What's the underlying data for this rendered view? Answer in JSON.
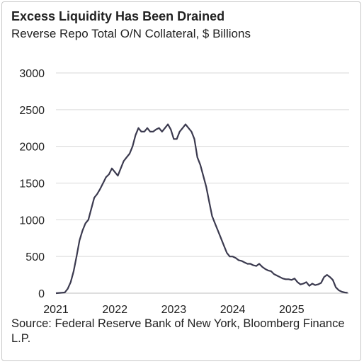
{
  "chart_data": {
    "type": "line",
    "title": "Excess Liquidity Has Been Drained",
    "subtitle": "Reverse Repo Total O/N Collateral, $ Billions",
    "source": "Source: Federal Reserve Bank of New York, Bloomberg Finance L.P.",
    "xlabel": "",
    "ylabel": "",
    "xlim": [
      2021.0,
      2025.95
    ],
    "ylim": [
      0,
      3000
    ],
    "y_ticks": [
      "0",
      "500",
      "1000",
      "1500",
      "2000",
      "2500",
      "3000"
    ],
    "x_ticks": [
      "2021",
      "2022",
      "2023",
      "2024",
      "2025"
    ],
    "grid": true,
    "colors": {
      "line": "#3b3a4f",
      "grid": "#d9d9d9",
      "text": "#222222"
    },
    "series": [
      {
        "x": [
          2021.0,
          2021.08,
          2021.15,
          2021.2,
          2021.25,
          2021.3,
          2021.35,
          2021.4,
          2021.45,
          2021.5,
          2021.55,
          2021.6,
          2021.65,
          2021.7,
          2021.75,
          2021.8,
          2021.85,
          2021.9,
          2021.95,
          2022.0,
          2022.05,
          2022.1,
          2022.15,
          2022.2,
          2022.25,
          2022.3,
          2022.35,
          2022.4,
          2022.45,
          2022.5,
          2022.55,
          2022.6,
          2022.65,
          2022.7,
          2022.75,
          2022.8,
          2022.85,
          2022.9,
          2022.95,
          2023.0,
          2023.05,
          2023.1,
          2023.15,
          2023.2,
          2023.25,
          2023.3,
          2023.35,
          2023.4,
          2023.45,
          2023.5,
          2023.55,
          2023.6,
          2023.65,
          2023.7,
          2023.75,
          2023.8,
          2023.85,
          2023.9,
          2023.95,
          2024.0,
          2024.05,
          2024.1,
          2024.15,
          2024.2,
          2024.25,
          2024.3,
          2024.35,
          2024.4,
          2024.45,
          2024.5,
          2024.55,
          2024.6,
          2024.65,
          2024.7,
          2024.75,
          2024.8,
          2024.85,
          2024.9,
          2024.95,
          2025.0,
          2025.05,
          2025.1,
          2025.15,
          2025.2,
          2025.25,
          2025.3,
          2025.35,
          2025.4,
          2025.45,
          2025.5,
          2025.55,
          2025.6,
          2025.65,
          2025.7,
          2025.75,
          2025.8,
          2025.85,
          2025.9,
          2025.95
        ],
        "y": [
          0,
          5,
          10,
          60,
          150,
          300,
          500,
          720,
          850,
          950,
          1000,
          1150,
          1300,
          1350,
          1420,
          1500,
          1580,
          1620,
          1700,
          1650,
          1600,
          1700,
          1800,
          1850,
          1900,
          2000,
          2150,
          2250,
          2200,
          2200,
          2250,
          2200,
          2200,
          2230,
          2250,
          2200,
          2250,
          2300,
          2230,
          2100,
          2100,
          2200,
          2250,
          2300,
          2250,
          2200,
          2100,
          1850,
          1750,
          1600,
          1450,
          1250,
          1050,
          950,
          850,
          750,
          650,
          550,
          500,
          500,
          480,
          450,
          440,
          420,
          400,
          400,
          380,
          370,
          400,
          360,
          330,
          310,
          300,
          260,
          240,
          220,
          200,
          190,
          190,
          180,
          200,
          150,
          120,
          130,
          150,
          100,
          130,
          110,
          120,
          140,
          220,
          250,
          220,
          180,
          80,
          40,
          20,
          10,
          5
        ]
      }
    ]
  }
}
